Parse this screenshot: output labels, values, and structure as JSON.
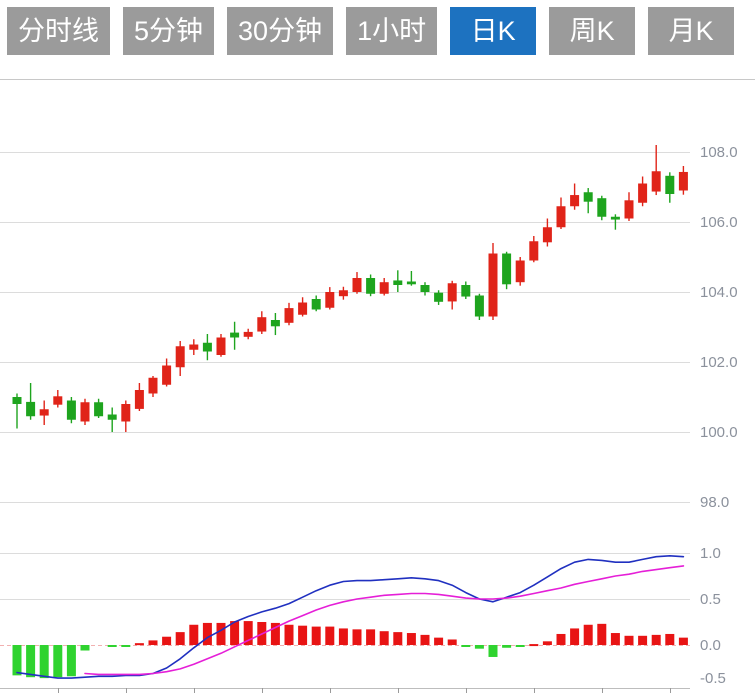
{
  "toolbar": {
    "tabs": [
      {
        "name": "tab-minute-line",
        "label": "分时线",
        "active": false
      },
      {
        "name": "tab-5min",
        "label": "5分钟",
        "active": false
      },
      {
        "name": "tab-30min",
        "label": "30分钟",
        "active": false
      },
      {
        "name": "tab-1hour",
        "label": "1小时",
        "active": false
      },
      {
        "name": "tab-daily-k",
        "label": "日K",
        "active": true
      },
      {
        "name": "tab-weekly-k",
        "label": "周K",
        "active": false
      },
      {
        "name": "tab-monthly-k",
        "label": "月K",
        "active": false
      }
    ]
  },
  "colors": {
    "tab_bg": "#9b9b9b",
    "tab_active_bg": "#1d72c0",
    "tab_text": "#ffffff",
    "grid": "#dcdcdc",
    "top_border": "#c8c8c8",
    "axis_line": "#bdbdbd",
    "tick": "#9a9a9a",
    "label_text": "#8b919c",
    "candle_up": "#e02419",
    "candle_down": "#1ea41e",
    "hist_up": "#e81414",
    "hist_down": "#2fd32f",
    "zero_dash": "#f2b0b0",
    "dif_line": "#2030c0",
    "dea_line": "#e51fd7"
  },
  "chart_data": {
    "type": "candlestick",
    "title": "",
    "legend_position": "none",
    "grid": true,
    "price_axis": {
      "side": "right",
      "tick_labels": [
        "108.0",
        "106.0",
        "104.0",
        "102.0",
        "100.0",
        "98.0"
      ],
      "tick_values": [
        108.0,
        106.0,
        104.0,
        102.0,
        100.0,
        98.0
      ],
      "range": [
        97.0,
        110.0
      ]
    },
    "macd_axis": {
      "side": "right",
      "tick_labels": [
        "1.0",
        "0.5",
        "0.0",
        "-0.5"
      ],
      "tick_values": [
        1.0,
        0.5,
        0.0,
        -0.5
      ],
      "range": [
        -0.5,
        1.0
      ]
    },
    "candles_ohlc": [
      [
        101.0,
        101.1,
        100.1,
        100.8
      ],
      [
        100.86,
        101.4,
        100.35,
        100.45
      ],
      [
        100.47,
        100.9,
        100.2,
        100.65
      ],
      [
        100.78,
        101.2,
        100.7,
        101.02
      ],
      [
        100.9,
        101.0,
        100.25,
        100.35
      ],
      [
        100.3,
        100.95,
        100.2,
        100.85
      ],
      [
        100.85,
        100.95,
        100.4,
        100.45
      ],
      [
        100.5,
        100.7,
        100.0,
        100.35
      ],
      [
        100.3,
        100.9,
        100.0,
        100.8
      ],
      [
        100.66,
        101.4,
        100.6,
        101.2
      ],
      [
        101.1,
        101.6,
        101.0,
        101.55
      ],
      [
        101.35,
        102.1,
        101.3,
        101.9
      ],
      [
        101.85,
        102.6,
        101.6,
        102.45
      ],
      [
        102.35,
        102.65,
        102.2,
        102.5
      ],
      [
        102.55,
        102.8,
        102.05,
        102.3
      ],
      [
        102.2,
        102.8,
        102.15,
        102.7
      ],
      [
        102.84,
        103.15,
        102.35,
        102.7
      ],
      [
        102.72,
        102.95,
        102.65,
        102.86
      ],
      [
        102.87,
        103.45,
        102.8,
        103.28
      ],
      [
        103.2,
        103.4,
        102.77,
        103.02
      ],
      [
        103.12,
        103.69,
        103.05,
        103.54
      ],
      [
        103.35,
        103.85,
        103.3,
        103.7
      ],
      [
        103.8,
        103.9,
        103.45,
        103.5
      ],
      [
        103.55,
        104.14,
        103.5,
        104.0
      ],
      [
        103.88,
        104.15,
        103.78,
        104.05
      ],
      [
        104.0,
        104.57,
        103.95,
        104.4
      ],
      [
        104.4,
        104.5,
        103.88,
        103.95
      ],
      [
        103.95,
        104.4,
        103.9,
        104.28
      ],
      [
        104.33,
        104.62,
        104.0,
        104.2
      ],
      [
        104.3,
        104.6,
        104.18,
        104.22
      ],
      [
        104.2,
        104.28,
        103.9,
        104.0
      ],
      [
        103.98,
        104.05,
        103.63,
        103.72
      ],
      [
        103.73,
        104.32,
        103.5,
        104.25
      ],
      [
        104.2,
        104.3,
        103.8,
        103.87
      ],
      [
        103.9,
        103.95,
        103.2,
        103.3
      ],
      [
        103.3,
        105.4,
        103.2,
        105.1
      ],
      [
        105.1,
        105.15,
        104.08,
        104.22
      ],
      [
        104.28,
        105.0,
        104.18,
        104.9
      ],
      [
        104.9,
        105.6,
        104.85,
        105.45
      ],
      [
        105.42,
        106.1,
        105.3,
        105.85
      ],
      [
        105.85,
        106.7,
        105.8,
        106.45
      ],
      [
        106.45,
        107.1,
        106.35,
        106.77
      ],
      [
        106.85,
        106.97,
        106.25,
        106.58
      ],
      [
        106.68,
        106.75,
        106.05,
        106.15
      ],
      [
        106.15,
        106.22,
        105.78,
        106.07
      ],
      [
        106.1,
        106.85,
        106.03,
        106.62
      ],
      [
        106.55,
        107.3,
        106.45,
        107.1
      ],
      [
        106.87,
        108.2,
        106.77,
        107.45
      ],
      [
        107.32,
        107.42,
        106.55,
        106.8
      ],
      [
        106.9,
        107.6,
        106.78,
        107.43
      ]
    ],
    "macd": {
      "histogram": [
        -0.33,
        -0.35,
        -0.36,
        -0.35,
        -0.34,
        -0.06,
        0,
        -0.02,
        -0.02,
        0.02,
        0.05,
        0.09,
        0.14,
        0.22,
        0.24,
        0.24,
        0.26,
        0.26,
        0.25,
        0.24,
        0.22,
        0.21,
        0.2,
        0.2,
        0.18,
        0.17,
        0.17,
        0.15,
        0.14,
        0.13,
        0.11,
        0.08,
        0.06,
        -0.02,
        -0.04,
        -0.13,
        -0.03,
        -0.02,
        0.01,
        0.04,
        0.12,
        0.18,
        0.22,
        0.23,
        0.13,
        0.1,
        0.1,
        0.11,
        0.12,
        0.08
      ],
      "dif": [
        -0.3,
        -0.32,
        -0.34,
        -0.36,
        -0.36,
        -0.35,
        -0.34,
        -0.34,
        -0.33,
        -0.33,
        -0.31,
        -0.25,
        -0.15,
        -0.03,
        0.08,
        0.16,
        0.25,
        0.31,
        0.36,
        0.4,
        0.45,
        0.52,
        0.59,
        0.65,
        0.69,
        0.7,
        0.7,
        0.71,
        0.72,
        0.73,
        0.72,
        0.7,
        0.65,
        0.57,
        0.5,
        0.47,
        0.52,
        0.57,
        0.65,
        0.74,
        0.83,
        0.9,
        0.93,
        0.92,
        0.9,
        0.9,
        0.93,
        0.96,
        0.97,
        0.96
      ],
      "dea": [
        null,
        null,
        null,
        null,
        null,
        -0.31,
        -0.32,
        -0.32,
        -0.32,
        -0.32,
        -0.31,
        -0.29,
        -0.26,
        -0.21,
        -0.15,
        -0.09,
        -0.02,
        0.05,
        0.12,
        0.19,
        0.26,
        0.32,
        0.38,
        0.43,
        0.47,
        0.5,
        0.52,
        0.54,
        0.55,
        0.56,
        0.56,
        0.55,
        0.53,
        0.51,
        0.5,
        0.5,
        0.51,
        0.53,
        0.56,
        0.59,
        0.62,
        0.66,
        0.69,
        0.72,
        0.75,
        0.77,
        0.8,
        0.82,
        0.84,
        0.86
      ]
    }
  }
}
